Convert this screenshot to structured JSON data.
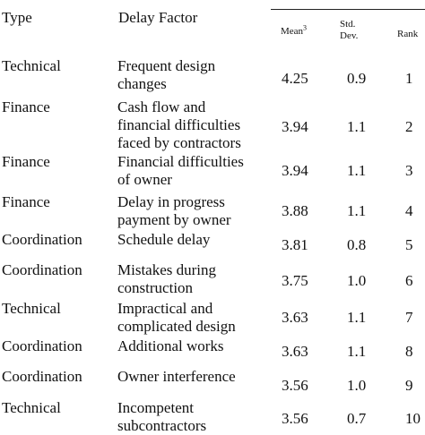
{
  "header": {
    "type": "Type",
    "factor": "Delay Factor",
    "mean": "Mean",
    "mean_sup": "3",
    "std_line1": "Std.",
    "std_line2": "Dev.",
    "rank": "Rank"
  },
  "rows": [
    {
      "type": "Technical",
      "factor": "Frequent design\nchanges",
      "mean": "4.25",
      "std": "0.9",
      "rank": "1"
    },
    {
      "type": "Finance",
      "factor": "Cash flow and\nfinancial difficulties\nfaced by contractors",
      "mean": "3.94",
      "std": "1.1",
      "rank": "2"
    },
    {
      "type": "Finance",
      "factor": "Financial difficulties\nof owner",
      "mean": "3.94",
      "std": "1.1",
      "rank": "3"
    },
    {
      "type": "Finance",
      "factor": "Delay in progress\npayment by owner",
      "mean": "3.88",
      "std": "1.1",
      "rank": "4"
    },
    {
      "type": "Coordination",
      "factor": "Schedule delay",
      "mean": "3.81",
      "std": "0.8",
      "rank": "5"
    },
    {
      "type": "Coordination",
      "factor": "Mistakes during\nconstruction",
      "mean": "3.75",
      "std": "1.0",
      "rank": "6"
    },
    {
      "type": "Technical",
      "factor": "Impractical and\ncomplicated design",
      "mean": "3.63",
      "std": "1.1",
      "rank": "7"
    },
    {
      "type": "Coordination",
      "factor": "Additional works",
      "mean": "3.63",
      "std": "1.1",
      "rank": "8"
    },
    {
      "type": "Coordination",
      "factor": "Owner interference",
      "mean": "3.56",
      "std": "1.0",
      "rank": "9"
    },
    {
      "type": "Technical",
      "factor": "Incompetent\nsubcontractors",
      "mean": "3.56",
      "std": "0.7",
      "rank": "10"
    }
  ]
}
